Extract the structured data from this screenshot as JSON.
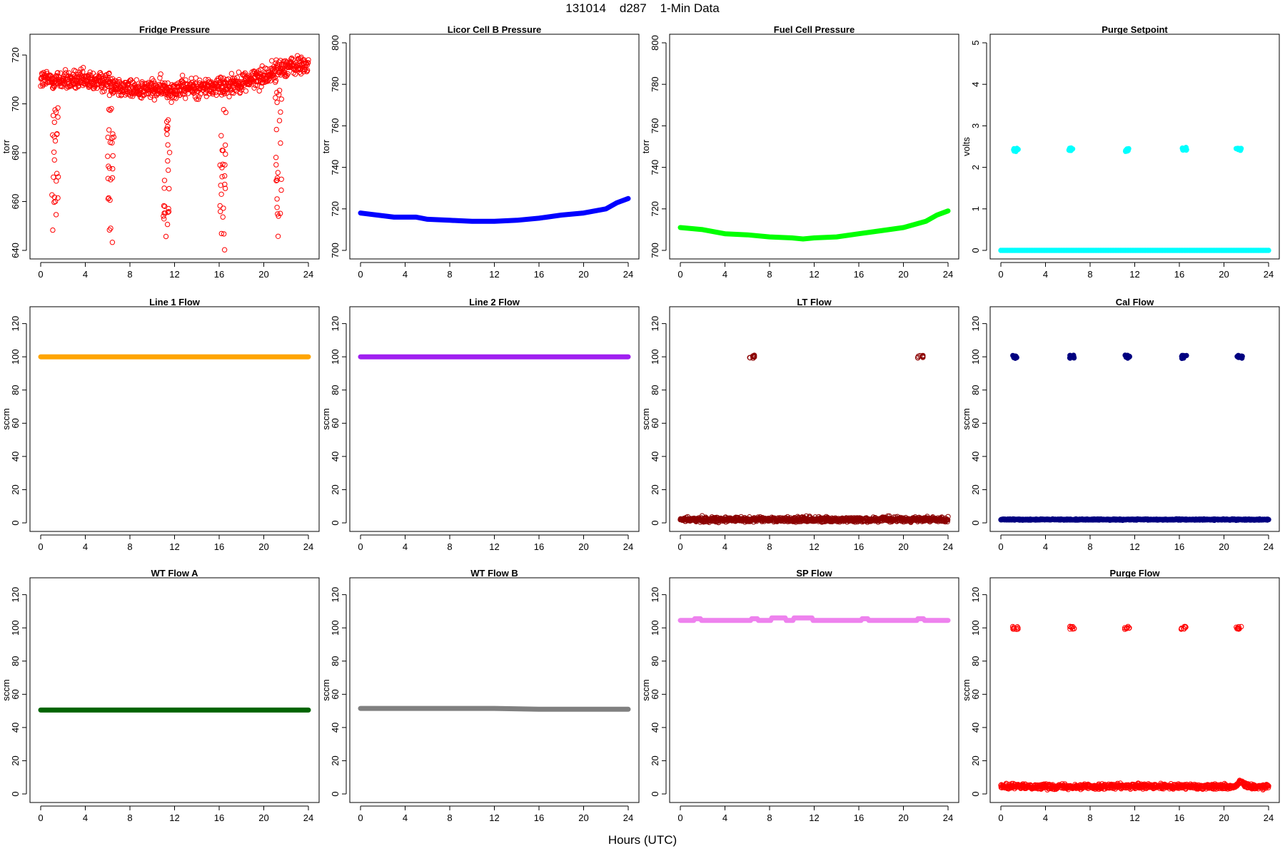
{
  "page": {
    "title": "131014    d287    1-Min Data",
    "xlabel": "Hours (UTC)"
  },
  "chart_data": [
    {
      "type": "scatter",
      "title": "Fridge Pressure",
      "ylabel": "torr",
      "xlim": [
        0,
        24
      ],
      "ylim": [
        640,
        725
      ],
      "xticks": [
        0,
        4,
        8,
        12,
        16,
        20,
        24
      ],
      "yticks": [
        640,
        660,
        680,
        700,
        720
      ],
      "series": [
        {
          "color": "#ff0000",
          "style": "open",
          "baseline": [
            [
              0,
              710
            ],
            [
              6,
              709
            ],
            [
              8,
              706
            ],
            [
              12,
              706
            ],
            [
              16,
              707
            ],
            [
              20,
              711
            ],
            [
              21.7,
              715
            ],
            [
              24,
              716
            ]
          ],
          "noise": 4,
          "dips": [
            {
              "x": 1.3,
              "y": 645
            },
            {
              "x": 6.3,
              "y": 640
            },
            {
              "x": 11.3,
              "y": 645
            },
            {
              "x": 16.3,
              "y": 640
            },
            {
              "x": 21.3,
              "y": 642
            }
          ]
        }
      ]
    },
    {
      "type": "line",
      "title": "Licor Cell B Pressure",
      "ylabel": "torr",
      "xlim": [
        0,
        24
      ],
      "ylim": [
        700,
        800
      ],
      "xticks": [
        0,
        4,
        8,
        12,
        16,
        20,
        24
      ],
      "yticks": [
        700,
        720,
        740,
        760,
        780,
        800
      ],
      "series": [
        {
          "color": "#0000ff",
          "points": [
            [
              0,
              718
            ],
            [
              3,
              716
            ],
            [
              5,
              716
            ],
            [
              6,
              715
            ],
            [
              8,
              714.5
            ],
            [
              10,
              714
            ],
            [
              12,
              714
            ],
            [
              14,
              714.5
            ],
            [
              16,
              715.5
            ],
            [
              18,
              717
            ],
            [
              20,
              718
            ],
            [
              22,
              720
            ],
            [
              23,
              723
            ],
            [
              24,
              725
            ]
          ]
        }
      ]
    },
    {
      "type": "line",
      "title": "Fuel Cell Pressure",
      "ylabel": "torr",
      "xlim": [
        0,
        24
      ],
      "ylim": [
        700,
        800
      ],
      "xticks": [
        0,
        4,
        8,
        12,
        16,
        20,
        24
      ],
      "yticks": [
        700,
        720,
        740,
        760,
        780,
        800
      ],
      "series": [
        {
          "color": "#00ff00",
          "points": [
            [
              0,
              711
            ],
            [
              2,
              710
            ],
            [
              4,
              708
            ],
            [
              6,
              707.5
            ],
            [
              8,
              706.5
            ],
            [
              10,
              706
            ],
            [
              11,
              705.5
            ],
            [
              12,
              706
            ],
            [
              14,
              706.5
            ],
            [
              16,
              708
            ],
            [
              18,
              709.5
            ],
            [
              20,
              711
            ],
            [
              22,
              714
            ],
            [
              23,
              717
            ],
            [
              24,
              719
            ]
          ]
        }
      ]
    },
    {
      "type": "scatter",
      "title": "Purge Setpoint",
      "ylabel": "volts",
      "xlim": [
        0,
        24
      ],
      "ylim": [
        0,
        5
      ],
      "xticks": [
        0,
        4,
        8,
        12,
        16,
        20,
        24
      ],
      "yticks": [
        0,
        1,
        2,
        3,
        4,
        5
      ],
      "series": [
        {
          "color": "#00ffff",
          "style": "filled",
          "baseline": [
            [
              0,
              0
            ],
            [
              24,
              0
            ]
          ],
          "noise": 0,
          "clusters": [
            {
              "x": 1.3,
              "y": 2.42
            },
            {
              "x": 6.3,
              "y": 2.43
            },
            {
              "x": 11.3,
              "y": 2.42
            },
            {
              "x": 16.4,
              "y": 2.45
            },
            {
              "x": 21.3,
              "y": 2.43
            }
          ]
        }
      ]
    },
    {
      "type": "line",
      "title": "Line 1 Flow",
      "ylabel": "sccm",
      "xlim": [
        0,
        24
      ],
      "ylim": [
        0,
        125
      ],
      "xticks": [
        0,
        4,
        8,
        12,
        16,
        20,
        24
      ],
      "yticks": [
        0,
        20,
        40,
        60,
        80,
        100,
        120
      ],
      "series": [
        {
          "color": "#ffa500",
          "points": [
            [
              0,
              100
            ],
            [
              24,
              100
            ]
          ]
        }
      ]
    },
    {
      "type": "line",
      "title": "Line 2 Flow",
      "ylabel": "sccm",
      "xlim": [
        0,
        24
      ],
      "ylim": [
        0,
        125
      ],
      "xticks": [
        0,
        4,
        8,
        12,
        16,
        20,
        24
      ],
      "yticks": [
        0,
        20,
        40,
        60,
        80,
        100,
        120
      ],
      "series": [
        {
          "color": "#a020f0",
          "points": [
            [
              0,
              100
            ],
            [
              24,
              100
            ]
          ]
        }
      ]
    },
    {
      "type": "scatter",
      "title": "LT Flow",
      "ylabel": "sccm",
      "xlim": [
        0,
        24
      ],
      "ylim": [
        0,
        125
      ],
      "xticks": [
        0,
        4,
        8,
        12,
        16,
        20,
        24
      ],
      "yticks": [
        0,
        20,
        40,
        60,
        80,
        100,
        120
      ],
      "series": [
        {
          "color": "#8b0000",
          "style": "open",
          "baseline": [
            [
              0,
              2
            ],
            [
              24,
              2
            ]
          ],
          "noise": 1.5,
          "clusters": [
            {
              "x": 6.4,
              "y": 100
            },
            {
              "x": 21.5,
              "y": 100
            }
          ]
        }
      ]
    },
    {
      "type": "scatter",
      "title": "Cal Flow",
      "ylabel": "sccm",
      "xlim": [
        0,
        24
      ],
      "ylim": [
        0,
        125
      ],
      "xticks": [
        0,
        4,
        8,
        12,
        16,
        20,
        24
      ],
      "yticks": [
        0,
        20,
        40,
        60,
        80,
        100,
        120
      ],
      "series": [
        {
          "color": "#000080",
          "style": "filled",
          "baseline": [
            [
              0,
              2
            ],
            [
              24,
              2
            ]
          ],
          "noise": 0.3,
          "clusters": [
            {
              "x": 1.3,
              "y": 100
            },
            {
              "x": 6.4,
              "y": 100
            },
            {
              "x": 11.3,
              "y": 100
            },
            {
              "x": 16.4,
              "y": 100
            },
            {
              "x": 21.4,
              "y": 100
            }
          ]
        }
      ]
    },
    {
      "type": "line",
      "title": "WT Flow A",
      "ylabel": "sccm",
      "xlim": [
        0,
        24
      ],
      "ylim": [
        0,
        125
      ],
      "xticks": [
        0,
        4,
        8,
        12,
        16,
        20,
        24
      ],
      "yticks": [
        0,
        20,
        40,
        60,
        80,
        100,
        120
      ],
      "series": [
        {
          "color": "#006400",
          "points": [
            [
              0,
              50.5
            ],
            [
              24,
              50.5
            ]
          ]
        }
      ]
    },
    {
      "type": "line",
      "title": "WT Flow B",
      "ylabel": "sccm",
      "xlim": [
        0,
        24
      ],
      "ylim": [
        0,
        125
      ],
      "xticks": [
        0,
        4,
        8,
        12,
        16,
        20,
        24
      ],
      "yticks": [
        0,
        20,
        40,
        60,
        80,
        100,
        120
      ],
      "series": [
        {
          "color": "#808080",
          "points": [
            [
              0,
              51.5
            ],
            [
              12,
              51.5
            ],
            [
              16,
              51
            ],
            [
              20,
              51
            ],
            [
              24,
              51
            ]
          ]
        }
      ]
    },
    {
      "type": "line",
      "title": "SP Flow",
      "ylabel": "sccm",
      "xlim": [
        0,
        24
      ],
      "ylim": [
        0,
        125
      ],
      "xticks": [
        0,
        4,
        8,
        12,
        16,
        20,
        24
      ],
      "yticks": [
        0,
        20,
        40,
        60,
        80,
        100,
        120
      ],
      "series": [
        {
          "color": "#ee82ee",
          "points": [
            [
              0,
              104.5
            ],
            [
              1.2,
              104.5
            ],
            [
              1.3,
              105.5
            ],
            [
              1.8,
              105.5
            ],
            [
              1.9,
              104.5
            ],
            [
              6.3,
              104.5
            ],
            [
              6.4,
              105.5
            ],
            [
              6.9,
              105.5
            ],
            [
              7,
              104.5
            ],
            [
              8.1,
              104.5
            ],
            [
              8.2,
              106
            ],
            [
              9.4,
              106
            ],
            [
              9.5,
              104.5
            ],
            [
              10.1,
              104.5
            ],
            [
              10.2,
              106
            ],
            [
              11.8,
              106
            ],
            [
              11.9,
              104.5
            ],
            [
              16.2,
              104.5
            ],
            [
              16.3,
              105.5
            ],
            [
              16.8,
              105.5
            ],
            [
              16.9,
              104.5
            ],
            [
              21.2,
              104.5
            ],
            [
              21.3,
              105.5
            ],
            [
              21.8,
              105.5
            ],
            [
              21.9,
              104.5
            ],
            [
              24,
              104.5
            ]
          ]
        }
      ]
    },
    {
      "type": "scatter",
      "title": "Purge Flow",
      "ylabel": "sccm",
      "xlim": [
        0,
        24
      ],
      "ylim": [
        0,
        125
      ],
      "xticks": [
        0,
        4,
        8,
        12,
        16,
        20,
        24
      ],
      "yticks": [
        0,
        20,
        40,
        60,
        80,
        100,
        120
      ],
      "series": [
        {
          "color": "#ff0000",
          "style": "open",
          "baseline": [
            [
              0,
              4.5
            ],
            [
              21,
              4.5
            ],
            [
              21.5,
              8
            ],
            [
              22,
              4.5
            ],
            [
              24,
              4.5
            ]
          ],
          "noise": 1.5,
          "clusters": [
            {
              "x": 1.3,
              "y": 100
            },
            {
              "x": 6.4,
              "y": 100
            },
            {
              "x": 11.3,
              "y": 100
            },
            {
              "x": 16.4,
              "y": 100
            },
            {
              "x": 21.3,
              "y": 100
            }
          ]
        }
      ]
    }
  ]
}
